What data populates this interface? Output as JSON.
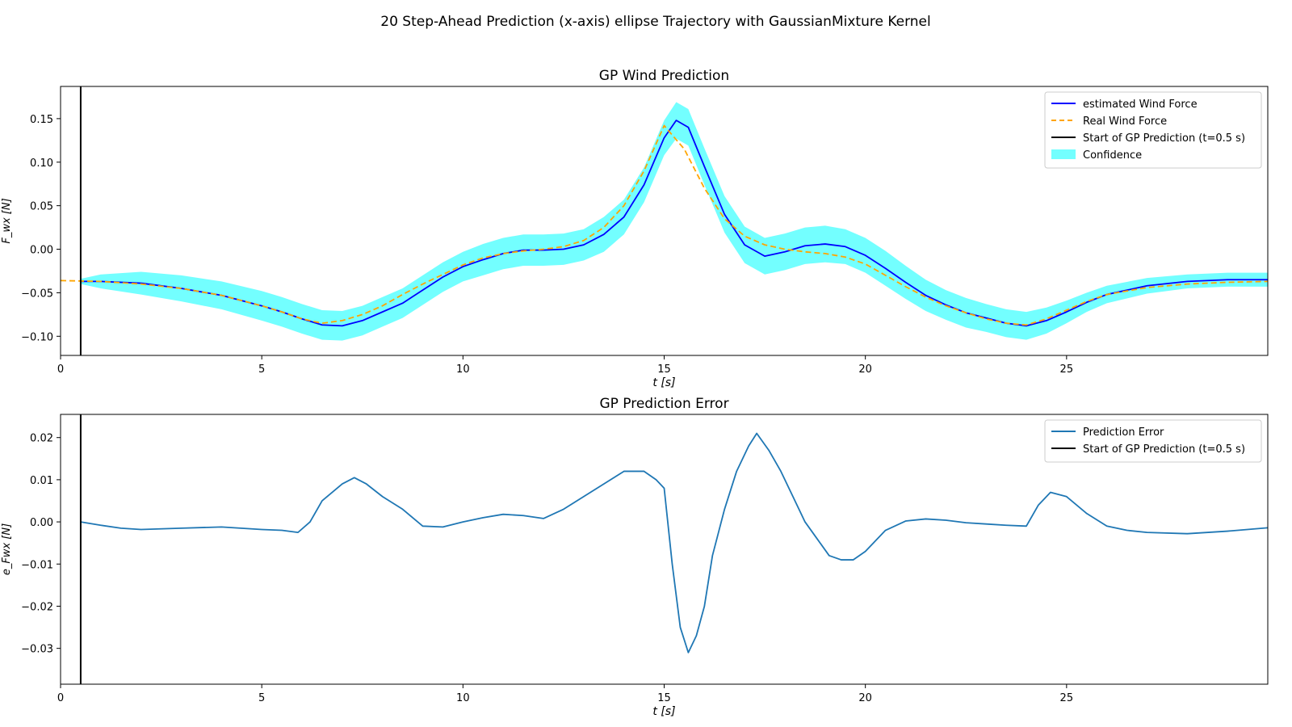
{
  "figure_title": "20 Step-Ahead Prediction (x-axis) ellipse Trajectory with GaussianMixture Kernel",
  "chart_data": [
    {
      "type": "line",
      "title": "GP Wind Prediction",
      "xlabel": "t [s]",
      "ylabel": "F_wx [N]",
      "xlim": [
        0,
        30
      ],
      "ylim": [
        -0.122,
        0.187
      ],
      "xticks": [
        0,
        5,
        10,
        15,
        20,
        25
      ],
      "yticks": [
        -0.1,
        -0.05,
        0.0,
        0.05,
        0.1,
        0.15
      ],
      "ytick_labels": [
        "−0.10",
        "−0.05",
        "0.00",
        "0.05",
        "0.10",
        "0.15"
      ],
      "grid": false,
      "legend_position": "top-right",
      "vline": {
        "x": 0.5,
        "label": "Start of GP Prediction (t=0.5 s)",
        "color": "#000000"
      },
      "series": [
        {
          "name": "estimated Wind Force",
          "color": "#0000ff",
          "style": "solid",
          "x": [
            0.5,
            1,
            2,
            3,
            4,
            5,
            5.5,
            6,
            6.5,
            7,
            7.5,
            8,
            8.5,
            9,
            9.5,
            10,
            10.5,
            11,
            11.5,
            12,
            12.5,
            13,
            13.5,
            14,
            14.5,
            15,
            15.3,
            15.6,
            16,
            16.5,
            17,
            17.5,
            18,
            18.5,
            19,
            19.5,
            20,
            20.5,
            21,
            21.5,
            22,
            22.5,
            23,
            23.5,
            24,
            24.5,
            25,
            25.5,
            26,
            27,
            28,
            29,
            30
          ],
          "y": [
            -0.037,
            -0.037,
            -0.039,
            -0.045,
            -0.053,
            -0.065,
            -0.072,
            -0.08,
            -0.087,
            -0.088,
            -0.082,
            -0.072,
            -0.062,
            -0.047,
            -0.032,
            -0.02,
            -0.012,
            -0.005,
            -0.001,
            -0.001,
            0.0,
            0.005,
            0.017,
            0.037,
            0.074,
            0.128,
            0.148,
            0.14,
            0.095,
            0.04,
            0.005,
            -0.008,
            -0.003,
            0.004,
            0.006,
            0.003,
            -0.007,
            -0.022,
            -0.038,
            -0.053,
            -0.064,
            -0.073,
            -0.079,
            -0.085,
            -0.088,
            -0.082,
            -0.072,
            -0.061,
            -0.052,
            -0.042,
            -0.037,
            -0.035,
            -0.035
          ]
        },
        {
          "name": "Real Wind Force",
          "color": "#ffa500",
          "style": "dashed",
          "x": [
            0,
            1,
            2,
            3,
            4,
            5,
            5.5,
            6,
            6.5,
            7,
            7.5,
            8,
            8.5,
            9,
            9.5,
            10,
            10.5,
            11,
            11.5,
            12,
            12.5,
            13,
            13.5,
            14,
            14.5,
            15,
            15.5,
            16,
            16.5,
            17,
            17.5,
            18,
            18.5,
            19,
            19.5,
            20,
            20.5,
            21,
            21.5,
            22,
            22.5,
            23,
            23.5,
            24,
            24.5,
            25,
            25.5,
            26,
            27,
            28,
            29,
            30
          ],
          "y": [
            -0.036,
            -0.037,
            -0.04,
            -0.045,
            -0.053,
            -0.065,
            -0.072,
            -0.08,
            -0.085,
            -0.082,
            -0.075,
            -0.065,
            -0.052,
            -0.04,
            -0.029,
            -0.018,
            -0.01,
            -0.005,
            -0.002,
            0.0,
            0.003,
            0.01,
            0.025,
            0.05,
            0.09,
            0.142,
            0.115,
            0.07,
            0.035,
            0.015,
            0.005,
            0.0,
            -0.003,
            -0.005,
            -0.009,
            -0.017,
            -0.03,
            -0.043,
            -0.055,
            -0.065,
            -0.073,
            -0.08,
            -0.085,
            -0.087,
            -0.08,
            -0.07,
            -0.06,
            -0.052,
            -0.044,
            -0.04,
            -0.038,
            -0.037
          ]
        }
      ],
      "confidence": {
        "name": "Confidence",
        "color": "#00ffff",
        "x": [
          0.5,
          1,
          2,
          3,
          4,
          5,
          5.5,
          6,
          6.5,
          7,
          7.5,
          8,
          8.5,
          9,
          9.5,
          10,
          10.5,
          11,
          11.5,
          12,
          12.5,
          13,
          13.5,
          14,
          14.5,
          15,
          15.3,
          15.6,
          16,
          16.5,
          17,
          17.5,
          18,
          18.5,
          19,
          19.5,
          20,
          20.5,
          21,
          21.5,
          22,
          22.5,
          23,
          23.5,
          24,
          24.5,
          25,
          25.5,
          26,
          27,
          28,
          29,
          30
        ],
        "half_width": [
          0.003,
          0.008,
          0.013,
          0.015,
          0.016,
          0.017,
          0.017,
          0.017,
          0.017,
          0.017,
          0.017,
          0.017,
          0.017,
          0.017,
          0.017,
          0.017,
          0.018,
          0.018,
          0.018,
          0.018,
          0.018,
          0.018,
          0.02,
          0.02,
          0.02,
          0.02,
          0.021,
          0.021,
          0.021,
          0.021,
          0.021,
          0.021,
          0.021,
          0.021,
          0.021,
          0.02,
          0.02,
          0.02,
          0.019,
          0.018,
          0.017,
          0.017,
          0.016,
          0.016,
          0.016,
          0.015,
          0.013,
          0.011,
          0.01,
          0.009,
          0.008,
          0.008,
          0.008
        ]
      }
    },
    {
      "type": "line",
      "title": "GP Prediction Error",
      "xlabel": "t [s]",
      "ylabel": "e_Fwx [N]",
      "xlim": [
        0,
        30
      ],
      "ylim": [
        -0.0385,
        0.0255
      ],
      "xticks": [
        0,
        5,
        10,
        15,
        20,
        25
      ],
      "yticks": [
        -0.03,
        -0.02,
        -0.01,
        0.0,
        0.01,
        0.02
      ],
      "ytick_labels": [
        "−0.03",
        "−0.02",
        "−0.01",
        "0.00",
        "0.01",
        "0.02"
      ],
      "grid": false,
      "legend_position": "top-right",
      "vline": {
        "x": 0.5,
        "label": "Start of GP Prediction (t=0.5 s)",
        "color": "#000000"
      },
      "series": [
        {
          "name": "Prediction Error",
          "color": "#1f77b4",
          "style": "solid",
          "x": [
            0.5,
            1,
            1.5,
            2,
            3,
            4,
            5,
            5.5,
            5.9,
            6.2,
            6.5,
            7,
            7.3,
            7.6,
            8,
            8.5,
            9,
            9.5,
            10,
            10.5,
            11,
            11.5,
            12,
            12.5,
            13,
            13.5,
            14,
            14.5,
            14.8,
            15.0,
            15.2,
            15.4,
            15.6,
            15.8,
            16.0,
            16.2,
            16.5,
            16.8,
            17.1,
            17.3,
            17.6,
            17.9,
            18.2,
            18.5,
            18.8,
            19.1,
            19.4,
            19.7,
            20.0,
            20.5,
            21,
            21.5,
            22,
            22.5,
            23,
            23.5,
            24,
            24.3,
            24.6,
            25,
            25.5,
            26,
            26.5,
            27,
            28,
            29,
            30
          ],
          "y": [
            0.0,
            -0.0008,
            -0.0015,
            -0.0018,
            -0.0015,
            -0.0012,
            -0.0018,
            -0.002,
            -0.0025,
            0.0,
            0.005,
            0.009,
            0.0105,
            0.009,
            0.006,
            0.003,
            -0.001,
            -0.0012,
            0.0,
            0.001,
            0.0018,
            0.0015,
            0.0008,
            0.003,
            0.006,
            0.009,
            0.012,
            0.012,
            0.01,
            0.008,
            -0.01,
            -0.025,
            -0.031,
            -0.027,
            -0.02,
            -0.008,
            0.003,
            0.012,
            0.018,
            0.021,
            0.017,
            0.012,
            0.006,
            0.0,
            -0.004,
            -0.008,
            -0.009,
            -0.009,
            -0.007,
            -0.002,
            0.0002,
            0.0007,
            0.0004,
            -0.0002,
            -0.0005,
            -0.0008,
            -0.001,
            0.004,
            0.007,
            0.006,
            0.002,
            -0.001,
            -0.002,
            -0.0025,
            -0.0028,
            -0.0022,
            -0.0014
          ]
        }
      ]
    }
  ]
}
